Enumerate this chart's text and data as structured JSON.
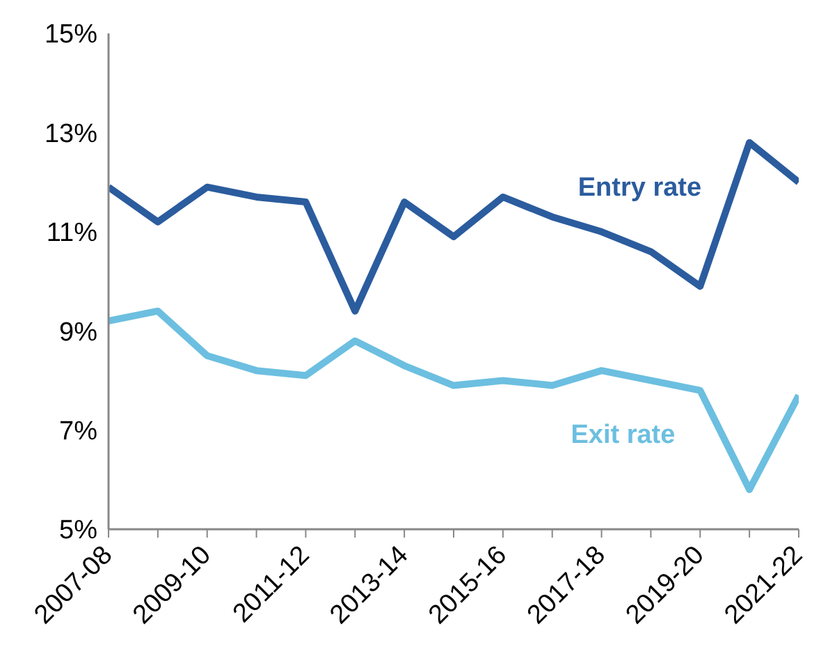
{
  "chart_data": {
    "type": "line",
    "categories": [
      "2007-08",
      null,
      "2009-10",
      null,
      "2011-12",
      null,
      "2013-14",
      null,
      "2015-16",
      null,
      "2017-18",
      null,
      "2019-20",
      null,
      "2021-22"
    ],
    "series": [
      {
        "name": "Entry rate",
        "color": "#2b5c9e",
        "values": [
          11.9,
          11.2,
          11.9,
          11.7,
          11.6,
          9.4,
          11.6,
          10.9,
          11.7,
          11.3,
          11.0,
          10.6,
          9.9,
          12.8,
          12.0
        ]
      },
      {
        "name": "Exit rate",
        "color": "#6cbfe0",
        "values": [
          9.2,
          9.4,
          8.5,
          8.2,
          8.1,
          8.8,
          8.3,
          7.9,
          8.0,
          7.9,
          8.2,
          8.0,
          7.8,
          5.8,
          7.7
        ]
      }
    ],
    "ylim": [
      5,
      15
    ],
    "yticks": [
      {
        "value": 5,
        "label": "5%"
      },
      {
        "value": 7,
        "label": "7%"
      },
      {
        "value": 9,
        "label": "9%"
      },
      {
        "value": 11,
        "label": "11%"
      },
      {
        "value": 13,
        "label": "13%"
      },
      {
        "value": 15,
        "label": "15%"
      }
    ],
    "grid": false,
    "legend": false,
    "marker": "none",
    "line_style": "solid"
  }
}
